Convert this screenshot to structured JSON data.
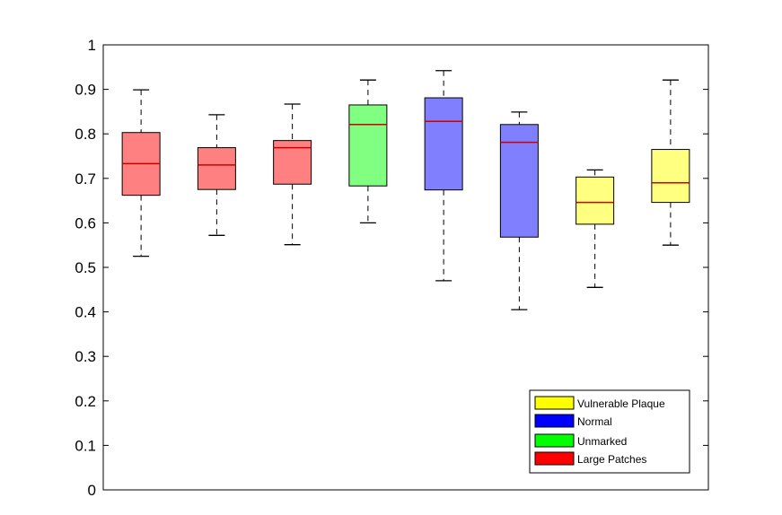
{
  "chart_data": {
    "type": "boxplot",
    "title": "",
    "xlabel": "",
    "ylabel": "",
    "ylim": [
      0,
      1
    ],
    "yticks": [
      "0",
      "0.1",
      "0.2",
      "0.3",
      "0.4",
      "0.5",
      "0.6",
      "0.7",
      "0.8",
      "0.9",
      "1"
    ],
    "grid": false,
    "legend_position": "bottom-right",
    "legend": [
      {
        "label": "Vulnerable Plaque",
        "color": "#ffff00"
      },
      {
        "label": "Normal",
        "color": "#0000ff"
      },
      {
        "label": "Unmarked",
        "color": "#00ff00"
      },
      {
        "label": "Large Patches",
        "color": "#ff0000"
      }
    ],
    "boxes": [
      {
        "group": "Large Patches",
        "fill": "#ff8080",
        "whisker_low": 0.525,
        "q1": 0.662,
        "median": 0.733,
        "q3": 0.803,
        "whisker_high": 0.899
      },
      {
        "group": "Large Patches",
        "fill": "#ff8080",
        "whisker_low": 0.572,
        "q1": 0.675,
        "median": 0.73,
        "q3": 0.769,
        "whisker_high": 0.843
      },
      {
        "group": "Large Patches",
        "fill": "#ff8080",
        "whisker_low": 0.551,
        "q1": 0.687,
        "median": 0.769,
        "q3": 0.785,
        "whisker_high": 0.867
      },
      {
        "group": "Unmarked",
        "fill": "#80ff80",
        "whisker_low": 0.6,
        "q1": 0.683,
        "median": 0.821,
        "q3": 0.865,
        "whisker_high": 0.921
      },
      {
        "group": "Normal",
        "fill": "#8080ff",
        "whisker_low": 0.47,
        "q1": 0.674,
        "median": 0.828,
        "q3": 0.881,
        "whisker_high": 0.942
      },
      {
        "group": "Normal",
        "fill": "#8080ff",
        "whisker_low": 0.405,
        "q1": 0.568,
        "median": 0.781,
        "q3": 0.821,
        "whisker_high": 0.849
      },
      {
        "group": "Vulnerable Plaque",
        "fill": "#ffff80",
        "whisker_low": 0.455,
        "q1": 0.597,
        "median": 0.646,
        "q3": 0.703,
        "whisker_high": 0.719
      },
      {
        "group": "Vulnerable Plaque",
        "fill": "#ffff80",
        "whisker_low": 0.55,
        "q1": 0.646,
        "median": 0.69,
        "q3": 0.765,
        "whisker_high": 0.921
      }
    ]
  }
}
